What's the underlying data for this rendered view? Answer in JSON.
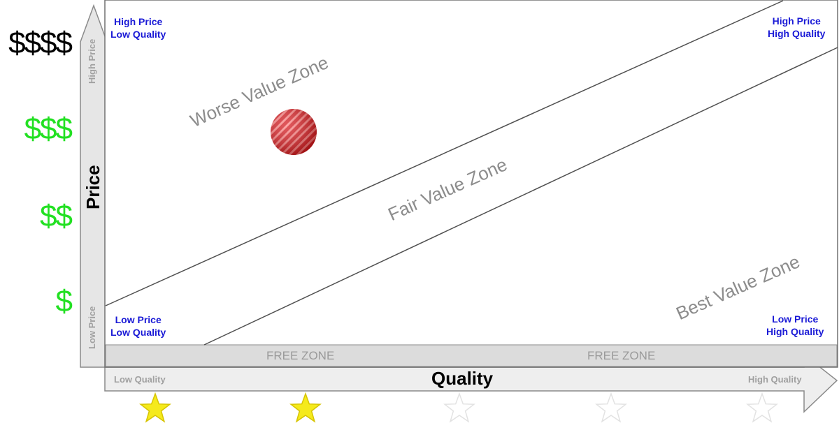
{
  "price_scale": [
    {
      "label": "$$$$",
      "color": "#000000"
    },
    {
      "label": "$$$",
      "color": "#22e022"
    },
    {
      "label": "$$",
      "color": "#22e022"
    },
    {
      "label": "$",
      "color": "#22e022"
    }
  ],
  "corners": {
    "top_left": [
      "High Price",
      "Low Quality"
    ],
    "top_right": [
      "High Price",
      "High Quality"
    ],
    "bottom_left": [
      "Low Price",
      "Low Quality"
    ],
    "bottom_right": [
      "Low Price",
      "High Quality"
    ]
  },
  "zones": {
    "worse": "Worse Value Zone",
    "fair": "Fair Value Zone",
    "best": "Best Value Zone",
    "free": "FREE ZONE"
  },
  "axes": {
    "y_title": "Price",
    "y_high": "High Price",
    "y_low": "Low Price",
    "x_title": "Quality",
    "x_low": "Low Quality",
    "x_high": "High Quality"
  },
  "quality_rating": {
    "filled": 2,
    "total": 5
  },
  "colors": {
    "corner_text": "#1a1ad6",
    "zone_text": "#8c8c8c",
    "star_filled": "#f5ea1c",
    "marker": "#e0262b"
  },
  "marker": {
    "icon": "striped-red-ball-icon"
  }
}
